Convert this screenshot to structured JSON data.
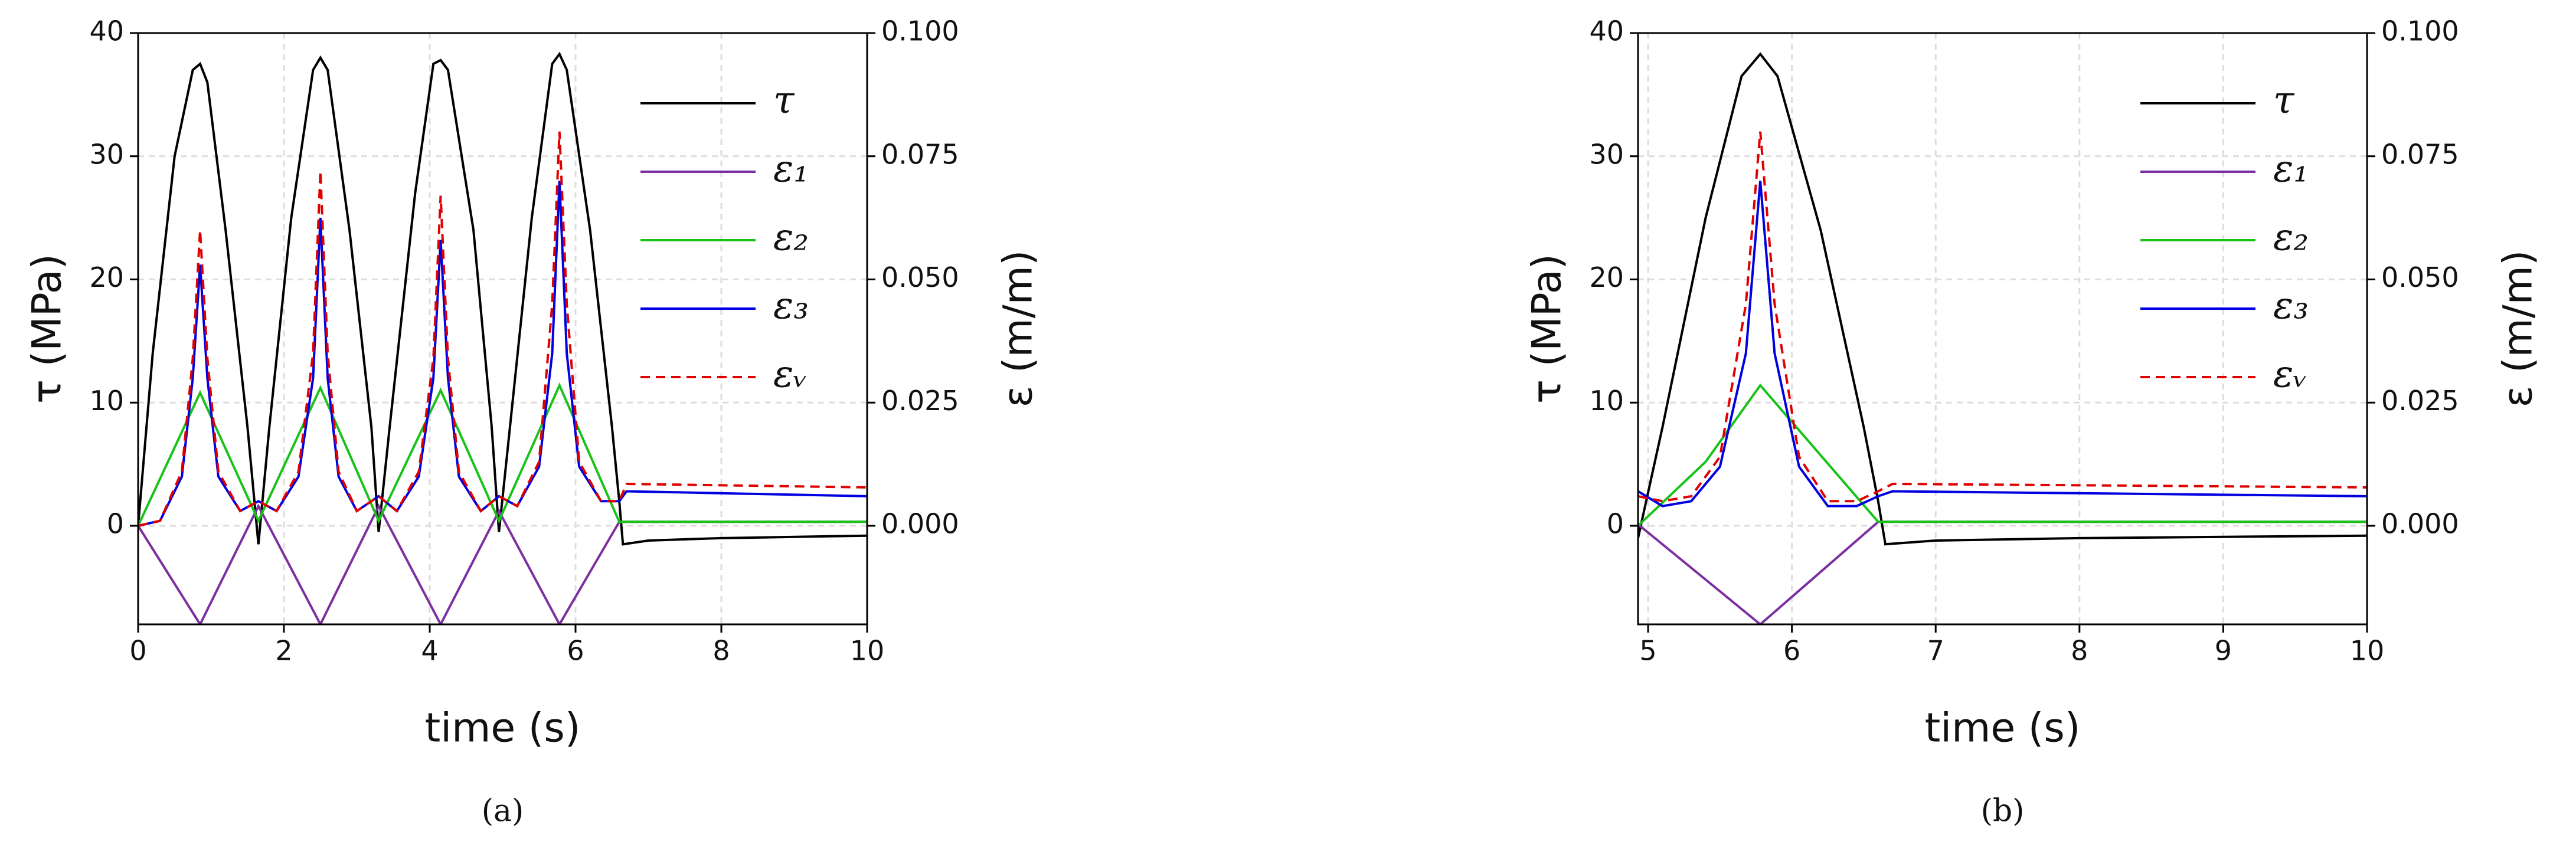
{
  "chart_data": [
    {
      "type": "line",
      "caption": "(a)",
      "xlabel": "time (s)",
      "ylabel": "τ (MPa)",
      "y2label": "ε (m/m)",
      "grid": true,
      "legend": "upper right",
      "xlim": [
        0,
        10
      ],
      "xticks": [
        0,
        2,
        4,
        6,
        8,
        10
      ],
      "ylim": [
        -8,
        40
      ],
      "yticks": [
        0,
        10,
        20,
        30,
        40
      ],
      "y2lim": [
        -0.02,
        0.1
      ],
      "y2ticks": [
        {
          "value": 0,
          "label": "0.000"
        },
        0.025,
        {
          "value": 0.05,
          "label": "0.050"
        },
        0.075,
        {
          "value": 0.1,
          "label": "0.100"
        }
      ],
      "series": [
        {
          "name": "τ",
          "color": "#000000",
          "linestyle": "solid",
          "x": [
            0,
            0.2,
            0.5,
            0.75,
            0.85,
            0.95,
            1.2,
            1.5,
            1.65,
            1.8,
            2.1,
            2.4,
            2.5,
            2.6,
            2.9,
            3.2,
            3.3,
            3.45,
            3.8,
            4.05,
            4.15,
            4.25,
            4.6,
            4.85,
            4.95,
            5.1,
            5.4,
            5.68,
            5.78,
            5.88,
            6.2,
            6.5,
            6.6,
            6.65,
            7,
            8,
            10
          ],
          "values": [
            0,
            14,
            30,
            37,
            37.5,
            36,
            24,
            8,
            -1.5,
            8,
            25,
            37,
            38,
            37,
            24,
            8,
            -0.5,
            8,
            27,
            37.5,
            37.8,
            37,
            24,
            8,
            -0.5,
            8,
            25,
            37.5,
            38.3,
            37,
            24,
            8,
            2,
            -1.5,
            -1.2,
            -1,
            -0.8
          ]
        },
        {
          "name": "ε₁",
          "color": "#7b2fa0",
          "linestyle": "solid",
          "axis": "y2",
          "x": [
            0,
            0.85,
            1.65,
            2.5,
            3.3,
            4.15,
            4.95,
            5.78,
            6.6,
            10
          ],
          "values": [
            0,
            -0.02,
            0.004,
            -0.02,
            0.004,
            -0.02,
            0.003,
            -0.02,
            0.0008,
            0.0008
          ]
        },
        {
          "name": "ε₂",
          "color": "#19c219",
          "linestyle": "solid",
          "axis": "y2",
          "x": [
            0,
            0.85,
            1.65,
            2.5,
            3.3,
            4.15,
            4.95,
            5.78,
            6.6,
            10
          ],
          "values": [
            0,
            0.027,
            0.001,
            0.028,
            0.001,
            0.0275,
            0.001,
            0.0285,
            0.0008,
            0.0008
          ]
        },
        {
          "name": "ε₃",
          "color": "#0000e0",
          "linestyle": "solid",
          "axis": "y2",
          "x": [
            0,
            0.3,
            0.6,
            0.75,
            0.85,
            0.95,
            1.1,
            1.4,
            1.65,
            1.9,
            2.2,
            2.4,
            2.5,
            2.6,
            2.75,
            3.0,
            3.3,
            3.55,
            3.85,
            4.05,
            4.15,
            4.25,
            4.4,
            4.7,
            4.95,
            5.2,
            5.5,
            5.68,
            5.78,
            5.88,
            6.05,
            6.35,
            6.6,
            6.7,
            10
          ],
          "values": [
            0,
            0.001,
            0.01,
            0.03,
            0.053,
            0.03,
            0.01,
            0.003,
            0.005,
            0.003,
            0.01,
            0.03,
            0.0625,
            0.03,
            0.01,
            0.003,
            0.006,
            0.003,
            0.01,
            0.03,
            0.058,
            0.03,
            0.01,
            0.003,
            0.006,
            0.004,
            0.012,
            0.035,
            0.07,
            0.035,
            0.012,
            0.005,
            0.005,
            0.007,
            0.006
          ]
        },
        {
          "name": "εᵥ",
          "color": "#e00000",
          "linestyle": "dashed",
          "axis": "y2",
          "x": [
            0,
            0.3,
            0.6,
            0.75,
            0.85,
            0.95,
            1.1,
            1.4,
            1.65,
            1.9,
            2.2,
            2.4,
            2.5,
            2.6,
            2.75,
            3.0,
            3.3,
            3.55,
            3.85,
            4.05,
            4.15,
            4.25,
            4.4,
            4.7,
            4.95,
            5.2,
            5.5,
            5.68,
            5.78,
            5.88,
            6.05,
            6.35,
            6.6,
            6.7,
            10
          ],
          "values": [
            0,
            0.001,
            0.011,
            0.034,
            0.06,
            0.034,
            0.011,
            0.003,
            0.005,
            0.003,
            0.011,
            0.035,
            0.072,
            0.035,
            0.011,
            0.003,
            0.006,
            0.003,
            0.011,
            0.034,
            0.067,
            0.034,
            0.011,
            0.003,
            0.006,
            0.004,
            0.013,
            0.045,
            0.08,
            0.045,
            0.013,
            0.005,
            0.005,
            0.0085,
            0.0078
          ]
        }
      ]
    },
    {
      "type": "line",
      "caption": "(b)",
      "xlabel": "time (s)",
      "ylabel": "τ (MPa)",
      "y2label": "ε (m/m)",
      "grid": true,
      "legend": "upper right",
      "xlim": [
        4.93,
        10
      ],
      "xticks": [
        5,
        6,
        7,
        8,
        9,
        10
      ],
      "ylim": [
        -8,
        40
      ],
      "yticks": [
        0,
        10,
        20,
        30,
        40
      ],
      "y2lim": [
        -0.02,
        0.1
      ],
      "y2ticks": [
        {
          "value": 0,
          "label": "0.000"
        },
        0.025,
        {
          "value": 0.05,
          "label": "0.050"
        },
        0.075,
        {
          "value": 0.1,
          "label": "0.100"
        }
      ],
      "series": [
        {
          "name": "τ",
          "color": "#000000",
          "linestyle": "solid",
          "x": [
            4.93,
            5.1,
            5.4,
            5.65,
            5.78,
            5.9,
            6.2,
            6.5,
            6.6,
            6.65,
            7,
            8,
            10
          ],
          "values": [
            -1,
            8,
            25,
            36.5,
            38.3,
            36.5,
            24,
            8,
            2,
            -1.5,
            -1.2,
            -1,
            -0.8
          ]
        },
        {
          "name": "ε₁",
          "color": "#7b2fa0",
          "linestyle": "solid",
          "axis": "y2",
          "x": [
            4.93,
            5.78,
            6.6,
            10
          ],
          "values": [
            0.0003,
            -0.02,
            0.0008,
            0.0008
          ]
        },
        {
          "name": "ε₂",
          "color": "#19c219",
          "linestyle": "solid",
          "axis": "y2",
          "x": [
            4.93,
            5.4,
            5.78,
            6.6,
            10
          ],
          "values": [
            0,
            0.013,
            0.0285,
            0.0008,
            0.0008
          ]
        },
        {
          "name": "ε₃",
          "color": "#0000e0",
          "linestyle": "solid",
          "axis": "y2",
          "x": [
            4.93,
            5.1,
            5.3,
            5.5,
            5.68,
            5.78,
            5.88,
            6.05,
            6.25,
            6.45,
            6.6,
            6.7,
            10
          ],
          "values": [
            0.007,
            0.004,
            0.005,
            0.012,
            0.035,
            0.07,
            0.035,
            0.012,
            0.004,
            0.004,
            0.006,
            0.007,
            0.006
          ]
        },
        {
          "name": "εᵥ",
          "color": "#e00000",
          "linestyle": "dashed",
          "axis": "y2",
          "x": [
            4.93,
            5.1,
            5.3,
            5.5,
            5.68,
            5.78,
            5.88,
            6.05,
            6.25,
            6.45,
            6.6,
            6.7,
            10
          ],
          "values": [
            0.006,
            0.005,
            0.006,
            0.014,
            0.045,
            0.08,
            0.045,
            0.014,
            0.005,
            0.005,
            0.007,
            0.0085,
            0.0078
          ]
        }
      ]
    }
  ]
}
